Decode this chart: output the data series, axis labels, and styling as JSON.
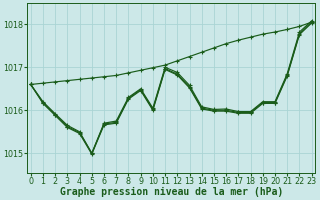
{
  "xlabel": "Graphe pression niveau de la mer (hPa)",
  "ylim": [
    1014.55,
    1018.5
  ],
  "xlim": [
    -0.3,
    23.3
  ],
  "yticks": [
    1015,
    1016,
    1017,
    1018
  ],
  "xticks": [
    0,
    1,
    2,
    3,
    4,
    5,
    6,
    7,
    8,
    9,
    10,
    11,
    12,
    13,
    14,
    15,
    16,
    17,
    18,
    19,
    20,
    21,
    22,
    23
  ],
  "background_color": "#cce8e8",
  "grid_color": "#aad4d4",
  "line_color": "#1a5c1a",
  "series": [
    {
      "x": [
        0,
        1,
        2,
        3,
        4,
        5,
        6,
        7,
        8,
        9,
        10,
        11,
        12,
        13,
        14,
        15,
        16,
        17,
        18,
        19,
        20,
        21,
        22,
        23
      ],
      "y": [
        1016.6,
        1016.63,
        1016.66,
        1016.69,
        1016.72,
        1016.75,
        1016.78,
        1016.81,
        1016.87,
        1016.93,
        1016.99,
        1017.05,
        1017.15,
        1017.25,
        1017.35,
        1017.45,
        1017.55,
        1017.63,
        1017.7,
        1017.77,
        1017.82,
        1017.88,
        1017.95,
        1018.05
      ]
    },
    {
      "x": [
        0,
        1,
        2,
        3,
        4,
        5,
        6,
        7,
        8,
        9,
        10,
        11,
        12,
        13,
        14,
        15,
        16,
        17,
        18,
        19,
        20,
        21,
        22,
        23
      ],
      "y": [
        1016.6,
        1016.2,
        1015.92,
        1015.65,
        1015.5,
        1015.0,
        1015.7,
        1015.75,
        1016.3,
        1016.5,
        1016.05,
        1017.0,
        1016.88,
        1016.58,
        1016.08,
        1016.02,
        1016.03,
        1015.97,
        1015.97,
        1016.2,
        1016.2,
        1016.85,
        1017.82,
        1018.08
      ]
    },
    {
      "x": [
        0,
        1,
        2,
        3,
        4,
        5,
        6,
        7,
        8,
        9,
        10,
        11,
        12,
        13,
        14,
        15,
        16,
        17,
        18,
        19,
        20,
        21,
        22,
        23
      ],
      "y": [
        1016.6,
        1016.18,
        1015.9,
        1015.62,
        1015.48,
        1015.0,
        1015.68,
        1015.72,
        1016.28,
        1016.48,
        1016.02,
        1016.97,
        1016.84,
        1016.54,
        1016.05,
        1016.0,
        1016.0,
        1015.95,
        1015.95,
        1016.18,
        1016.18,
        1016.82,
        1017.78,
        1018.05
      ]
    },
    {
      "x": [
        0,
        1,
        2,
        3,
        4,
        5,
        6,
        7,
        8,
        9,
        10,
        11,
        12,
        13,
        14,
        15,
        16,
        17,
        18,
        19,
        20,
        21,
        22,
        23
      ],
      "y": [
        1016.6,
        1016.16,
        1015.88,
        1015.6,
        1015.46,
        1014.98,
        1015.66,
        1015.7,
        1016.26,
        1016.46,
        1016.0,
        1016.95,
        1016.82,
        1016.52,
        1016.03,
        1015.98,
        1015.98,
        1015.93,
        1015.93,
        1016.16,
        1016.16,
        1016.8,
        1017.76,
        1018.03
      ]
    }
  ],
  "tick_fontsize": 5.8,
  "label_fontsize": 7.0
}
